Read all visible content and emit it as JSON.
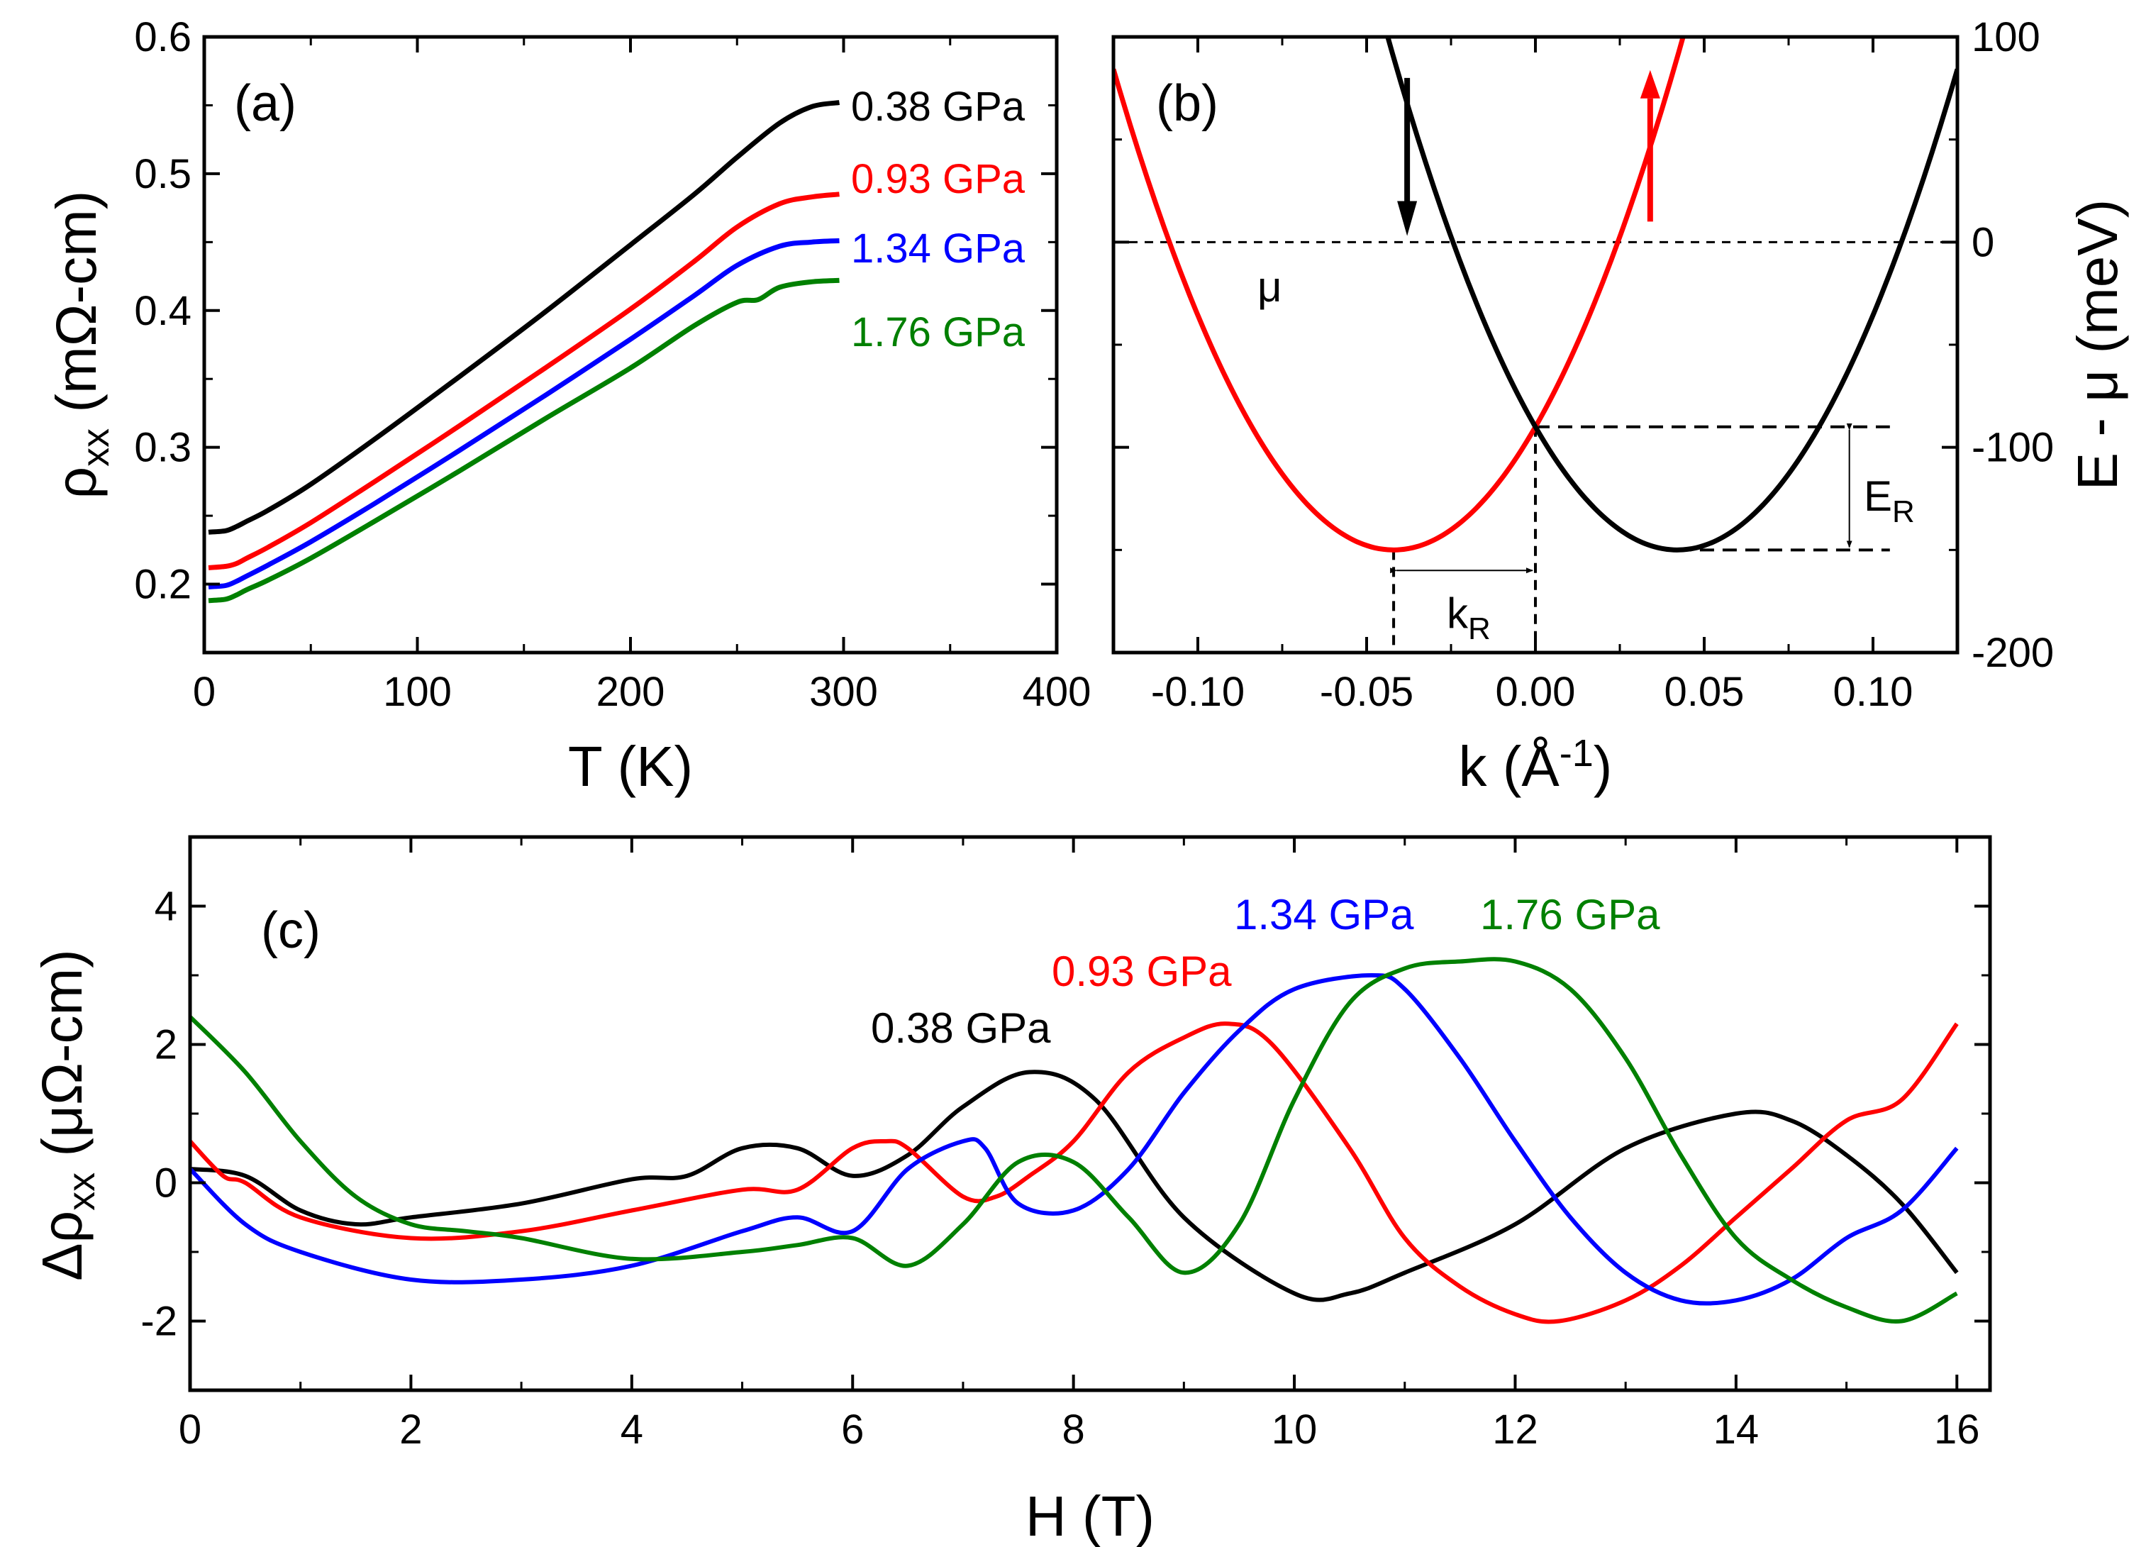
{
  "chart_data": [
    {
      "panel": "a",
      "type": "line",
      "panel_label": "(a)",
      "xlabel": "T (K)",
      "ylabel": "ρ",
      "ylabel_sub": "xx",
      "ylabel_unit": " (mΩ-cm)",
      "xlim": [
        0,
        400
      ],
      "ylim": [
        0.15,
        0.6
      ],
      "xticks": [
        0,
        100,
        200,
        300,
        400
      ],
      "xtick_labels": [
        "0",
        "100",
        "200",
        "300",
        "400"
      ],
      "yticks": [
        0.2,
        0.3,
        0.4,
        0.5,
        0.6
      ],
      "ytick_labels": [
        "0.2",
        "0.3",
        "0.4",
        "0.5",
        "0.6"
      ],
      "series": [
        {
          "name": "0.38 GPa",
          "color": "#000000",
          "x": [
            2,
            10,
            15,
            20,
            30,
            50,
            80,
            120,
            160,
            200,
            230,
            250,
            270,
            285,
            298
          ],
          "y": [
            0.238,
            0.239,
            0.242,
            0.246,
            0.254,
            0.273,
            0.306,
            0.352,
            0.399,
            0.448,
            0.485,
            0.512,
            0.537,
            0.549,
            0.552
          ]
        },
        {
          "name": "0.93 GPa",
          "color": "#ff0000",
          "x": [
            2,
            10,
            15,
            20,
            30,
            50,
            80,
            120,
            160,
            200,
            230,
            250,
            270,
            285,
            298
          ],
          "y": [
            0.212,
            0.213,
            0.215,
            0.219,
            0.227,
            0.245,
            0.275,
            0.316,
            0.358,
            0.401,
            0.436,
            0.461,
            0.478,
            0.483,
            0.485
          ]
        },
        {
          "name": "1.34 GPa",
          "color": "#0000ff",
          "x": [
            2,
            10,
            15,
            20,
            30,
            50,
            80,
            120,
            160,
            200,
            230,
            250,
            270,
            285,
            298
          ],
          "y": [
            0.198,
            0.199,
            0.202,
            0.206,
            0.214,
            0.231,
            0.259,
            0.298,
            0.338,
            0.379,
            0.411,
            0.433,
            0.447,
            0.45,
            0.451
          ]
        },
        {
          "name": "1.76 GPa",
          "color": "#008000",
          "x": [
            2,
            10,
            15,
            20,
            30,
            50,
            80,
            120,
            160,
            200,
            230,
            250,
            260,
            270,
            285,
            298
          ],
          "y": [
            0.188,
            0.189,
            0.192,
            0.196,
            0.203,
            0.219,
            0.246,
            0.283,
            0.321,
            0.358,
            0.389,
            0.406,
            0.408,
            0.417,
            0.421,
            0.422
          ]
        }
      ]
    },
    {
      "panel": "b",
      "type": "line",
      "panel_label": "(b)",
      "xlabel": "k (Å",
      "xlabel_sup": "-1",
      "xlabel_end": ")",
      "ylabel": "E - μ (meV)",
      "xlim": [
        -0.125,
        0.125
      ],
      "ylim": [
        -200,
        100
      ],
      "xticks": [
        -0.1,
        -0.05,
        0.0,
        0.05,
        0.1
      ],
      "xtick_labels": [
        "-0.10",
        "-0.05",
        "0.00",
        "0.05",
        "0.10"
      ],
      "yticks": [
        -200,
        -100,
        0,
        100
      ],
      "ytick_labels": [
        "-200",
        "-100",
        "0",
        "100"
      ],
      "bands": [
        {
          "name": "spin-up band",
          "color": "#ff0000",
          "k0": -0.042,
          "E0": -150,
          "curvature_meV_A2": 34000
        },
        {
          "name": "spin-down band",
          "color": "#000000",
          "k0": 0.042,
          "E0": -150,
          "curvature_meV_A2": 34000
        }
      ],
      "fermi_level": 0,
      "annotations": {
        "mu": "μ",
        "E_R": "E",
        "E_R_sub": "R",
        "k_R": "k",
        "k_R_sub": "R"
      }
    },
    {
      "panel": "c",
      "type": "line",
      "panel_label": "(c)",
      "xlabel": "H (T)",
      "ylabel": "Δρ",
      "ylabel_sub": "xx",
      "ylabel_unit": " (μΩ-cm)",
      "xlim": [
        0,
        16.3
      ],
      "ylim": [
        -3,
        5
      ],
      "xticks": [
        0,
        2,
        4,
        6,
        8,
        10,
        12,
        14,
        16
      ],
      "xtick_labels": [
        "0",
        "2",
        "4",
        "6",
        "8",
        "10",
        "12",
        "14",
        "16"
      ],
      "yticks": [
        -2,
        0,
        2,
        4
      ],
      "ytick_labels": [
        "-2",
        "0",
        "2",
        "4"
      ],
      "series": [
        {
          "name": "0.38 GPa",
          "color": "#000000",
          "x": [
            0,
            0.5,
            1,
            1.5,
            2,
            3,
            4,
            4.5,
            5,
            5.5,
            6,
            6.5,
            7,
            7.6,
            8.2,
            9,
            10,
            10.5,
            11,
            12,
            13,
            14,
            14.5,
            15,
            15.5,
            16
          ],
          "y": [
            0.2,
            0.1,
            -0.4,
            -0.6,
            -0.5,
            -0.3,
            0.05,
            0.1,
            0.5,
            0.5,
            0.1,
            0.4,
            1.1,
            1.6,
            1.2,
            -0.5,
            -1.6,
            -1.6,
            -1.3,
            -0.6,
            0.5,
            1.0,
            0.9,
            0.4,
            -0.3,
            -1.3
          ]
        },
        {
          "name": "0.93 GPa",
          "color": "#ff0000",
          "x": [
            0,
            0.3,
            0.5,
            1,
            2,
            3,
            4,
            5,
            5.5,
            6,
            6.3,
            6.5,
            7,
            7.3,
            7.6,
            8,
            8.5,
            9,
            9.4,
            9.8,
            10.5,
            11,
            11.5,
            12,
            12.4,
            13,
            13.5,
            14,
            14.5,
            15,
            15.5,
            16
          ],
          "y": [
            0.6,
            0.1,
            0.0,
            -0.5,
            -0.8,
            -0.7,
            -0.4,
            -0.1,
            -0.1,
            0.5,
            0.6,
            0.5,
            -0.2,
            -0.2,
            0.1,
            0.6,
            1.6,
            2.1,
            2.3,
            2.0,
            0.5,
            -0.8,
            -1.5,
            -1.9,
            -2.0,
            -1.7,
            -1.2,
            -0.5,
            0.2,
            0.9,
            1.2,
            2.3
          ]
        },
        {
          "name": "1.34 GPa",
          "color": "#0000ff",
          "x": [
            0,
            0.5,
            1,
            2,
            3,
            4,
            5,
            5.5,
            6,
            6.5,
            7,
            7.2,
            7.5,
            8,
            8.5,
            9,
            9.5,
            10,
            10.7,
            11,
            11.5,
            12,
            12.5,
            13,
            13.5,
            14,
            14.5,
            15,
            15.5,
            16
          ],
          "y": [
            0.2,
            -0.6,
            -1.0,
            -1.4,
            -1.4,
            -1.2,
            -0.7,
            -0.5,
            -0.7,
            0.2,
            0.6,
            0.5,
            -0.3,
            -0.4,
            0.2,
            1.3,
            2.2,
            2.8,
            3.0,
            2.8,
            1.8,
            0.6,
            -0.5,
            -1.3,
            -1.7,
            -1.7,
            -1.4,
            -0.8,
            -0.4,
            0.5
          ]
        },
        {
          "name": "1.76 GPa",
          "color": "#008000",
          "x": [
            0,
            0.5,
            1,
            1.5,
            2,
            2.5,
            3,
            4,
            5,
            5.5,
            6,
            6.5,
            7,
            7.5,
            8,
            8.5,
            9,
            9.5,
            10,
            10.5,
            11,
            11.5,
            12,
            12.5,
            13,
            13.5,
            14,
            14.5,
            15,
            15.5,
            16
          ],
          "y": [
            2.4,
            1.6,
            0.6,
            -0.2,
            -0.6,
            -0.7,
            -0.8,
            -1.1,
            -1.0,
            -0.9,
            -0.8,
            -1.2,
            -0.6,
            0.3,
            0.3,
            -0.5,
            -1.3,
            -0.6,
            1.2,
            2.6,
            3.1,
            3.2,
            3.2,
            2.8,
            1.8,
            0.4,
            -0.8,
            -1.4,
            -1.8,
            -2.0,
            -1.6
          ]
        }
      ]
    }
  ]
}
